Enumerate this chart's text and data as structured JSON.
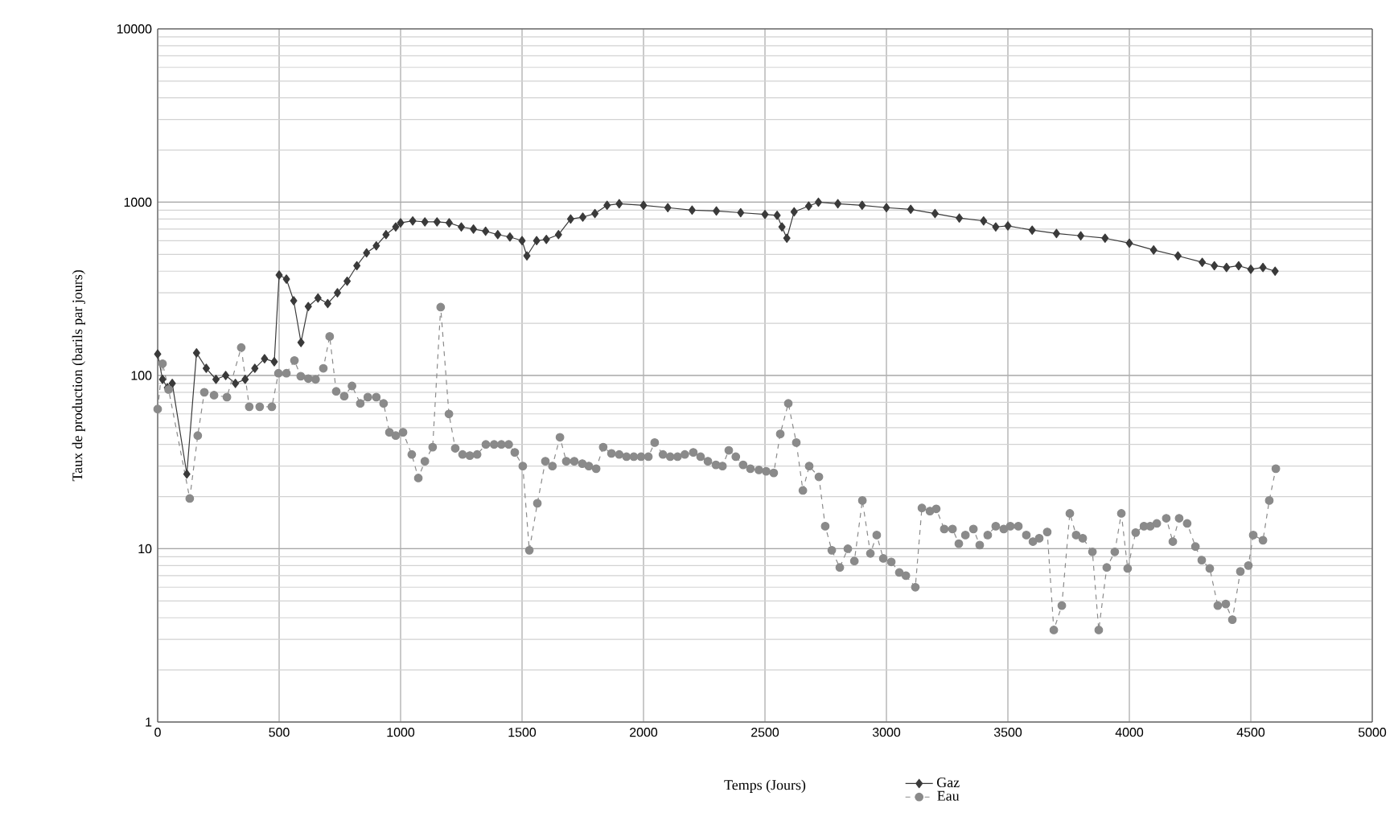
{
  "chart_data": {
    "type": "line",
    "xlabel": "Temps (Jours)",
    "ylabel": "Taux de production (barils par jours)",
    "log": "y",
    "grid": true,
    "legend": "bottom",
    "xlim": [
      0,
      5000
    ],
    "ylim": [
      1,
      10000
    ],
    "xticks": [
      0,
      500,
      1000,
      1500,
      2000,
      2500,
      3000,
      3500,
      4000,
      4500,
      5000
    ],
    "yticks": [
      1,
      10,
      100,
      1000,
      10000
    ],
    "series": [
      {
        "name": "Gaz",
        "color": "#3a3a3a",
        "marker": "diamond",
        "line_style": "solid",
        "x": [
          0,
          20,
          40,
          60,
          120,
          160,
          200,
          240,
          280,
          320,
          360,
          400,
          440,
          480,
          500,
          530,
          560,
          590,
          620,
          660,
          700,
          740,
          780,
          820,
          860,
          900,
          940,
          980,
          1000,
          1050,
          1100,
          1150,
          1200,
          1250,
          1300,
          1350,
          1400,
          1450,
          1500,
          1520,
          1560,
          1600,
          1650,
          1700,
          1750,
          1800,
          1850,
          1900,
          2000,
          2100,
          2200,
          2300,
          2400,
          2500,
          2550,
          2570,
          2590,
          2620,
          2680,
          2720,
          2800,
          2900,
          3000,
          3100,
          3200,
          3300,
          3400,
          3450,
          3500,
          3600,
          3700,
          3800,
          3900,
          4000,
          4100,
          4200,
          4300,
          4350,
          4400,
          4450,
          4500,
          4550,
          4600
        ],
        "values": [
          133,
          95,
          85,
          90,
          27,
          135,
          110,
          95,
          100,
          90,
          95,
          110,
          125,
          120,
          380,
          360,
          270,
          155,
          250,
          280,
          260,
          300,
          350,
          430,
          510,
          560,
          650,
          720,
          760,
          780,
          770,
          770,
          760,
          720,
          700,
          680,
          650,
          630,
          600,
          490,
          600,
          610,
          650,
          800,
          820,
          860,
          960,
          980,
          960,
          930,
          900,
          890,
          870,
          850,
          840,
          720,
          620,
          880,
          950,
          1000,
          980,
          960,
          930,
          910,
          860,
          810,
          780,
          720,
          730,
          690,
          660,
          640,
          620,
          580,
          530,
          490,
          450,
          430,
          420,
          430,
          410,
          420,
          400
        ]
      },
      {
        "name": "Eau",
        "color": "#8a8a8a",
        "marker": "circle",
        "line_style": "dashed",
        "x": [
          0,
          20,
          45,
          132,
          165,
          192,
          232,
          285,
          344,
          377,
          420,
          470,
          497,
          530,
          563,
          589,
          620,
          650,
          682,
          708,
          735,
          768,
          800,
          834,
          865,
          900,
          930,
          954,
          980,
          1010,
          1046,
          1073,
          1100,
          1132,
          1165,
          1199,
          1225,
          1255,
          1285,
          1315,
          1351,
          1385,
          1415,
          1445,
          1470,
          1503,
          1530,
          1563,
          1596,
          1625,
          1656,
          1682,
          1715,
          1748,
          1775,
          1805,
          1834,
          1868,
          1900,
          1930,
          1960,
          1990,
          2020,
          2046,
          2080,
          2110,
          2140,
          2170,
          2205,
          2235,
          2265,
          2298,
          2325,
          2351,
          2380,
          2410,
          2440,
          2475,
          2505,
          2536,
          2563,
          2596,
          2629,
          2656,
          2682,
          2722,
          2748,
          2775,
          2808,
          2841,
          2868,
          2901,
          2934,
          2960,
          2987,
          3020,
          3053,
          3080,
          3119,
          3146,
          3179,
          3205,
          3238,
          3272,
          3298,
          3325,
          3358,
          3384,
          3417,
          3450,
          3483,
          3510,
          3543,
          3576,
          3603,
          3629,
          3662,
          3689,
          3722,
          3755,
          3781,
          3808,
          3848,
          3874,
          3907,
          3940,
          3967,
          3993,
          4026,
          4060,
          4086,
          4113,
          4152,
          4179,
          4205,
          4238,
          4272,
          4298,
          4331,
          4364,
          4397,
          4424,
          4457,
          4490,
          4510,
          4550,
          4576,
          4603
        ],
        "values": [
          64,
          117,
          83,
          19.5,
          45,
          80,
          77,
          75,
          145,
          66,
          66,
          66,
          103,
          103,
          122,
          99,
          96,
          95,
          110,
          168,
          81,
          76,
          87,
          69,
          75,
          75,
          69,
          47,
          45,
          47,
          35,
          25.6,
          32,
          38.6,
          248,
          60,
          38,
          35,
          34.5,
          35,
          40,
          40,
          40,
          40,
          36,
          30,
          9.8,
          18.3,
          32,
          30,
          44,
          32,
          32,
          31,
          30,
          29,
          38.6,
          35.5,
          35,
          34,
          34,
          34,
          34,
          41,
          35,
          34,
          34,
          35,
          36,
          34,
          32,
          30.5,
          30,
          37,
          34,
          30.5,
          29,
          28.5,
          28,
          27.4,
          46,
          69,
          41,
          21.7,
          30,
          26,
          13.5,
          9.8,
          7.8,
          10,
          8.5,
          19,
          9.4,
          12,
          8.8,
          8.4,
          7.3,
          7,
          6,
          17.2,
          16.5,
          17,
          13,
          13,
          10.7,
          12,
          13,
          10.5,
          12,
          13.5,
          13,
          13.5,
          13.5,
          12,
          11,
          11.5,
          12.5,
          3.4,
          4.7,
          16,
          12,
          11.5,
          9.6,
          3.4,
          7.8,
          9.6,
          16,
          7.7,
          12.4,
          13.5,
          13.5,
          14,
          15,
          11,
          15,
          14,
          10.3,
          8.6,
          7.7,
          4.7,
          4.8,
          3.9,
          7.4,
          8,
          12,
          11.2,
          19,
          29
        ]
      }
    ]
  }
}
